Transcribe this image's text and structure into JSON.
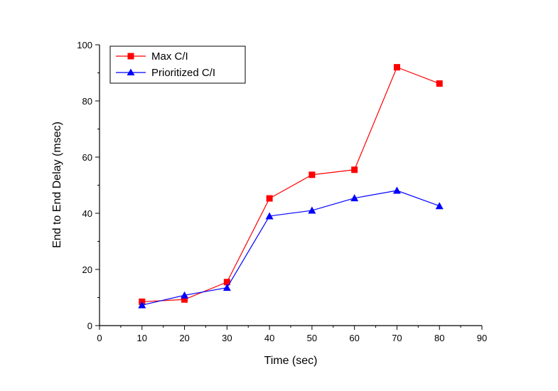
{
  "chart_data": {
    "type": "line",
    "title": "",
    "xlabel": "Time (sec)",
    "ylabel": "End to End Delay (msec)",
    "xlim": [
      0,
      90
    ],
    "ylim": [
      0,
      100
    ],
    "x_ticks": [
      0,
      10,
      20,
      30,
      40,
      50,
      60,
      70,
      80,
      90
    ],
    "x_tick_labels": [
      "0",
      "10",
      "20",
      "30",
      "40",
      "50",
      "60",
      "70",
      "80",
      "90"
    ],
    "y_ticks": [
      0,
      20,
      40,
      60,
      80,
      100
    ],
    "y_tick_labels": [
      "0",
      "20",
      "40",
      "60",
      "80",
      "100"
    ],
    "grid": false,
    "legend_position": "top-left",
    "x": [
      10,
      20,
      30,
      40,
      50,
      60,
      70,
      80
    ],
    "series": [
      {
        "name": "Max C/I",
        "color": "#ff0000",
        "marker": "square",
        "values": [
          8.5,
          9.3,
          15.5,
          45.3,
          53.7,
          55.5,
          92.0,
          86.2
        ]
      },
      {
        "name": "Prioritized C/I",
        "color": "#0000ff",
        "marker": "triangle",
        "values": [
          7.3,
          10.8,
          13.5,
          39.0,
          41.0,
          45.4,
          48.1,
          42.6
        ]
      }
    ]
  }
}
